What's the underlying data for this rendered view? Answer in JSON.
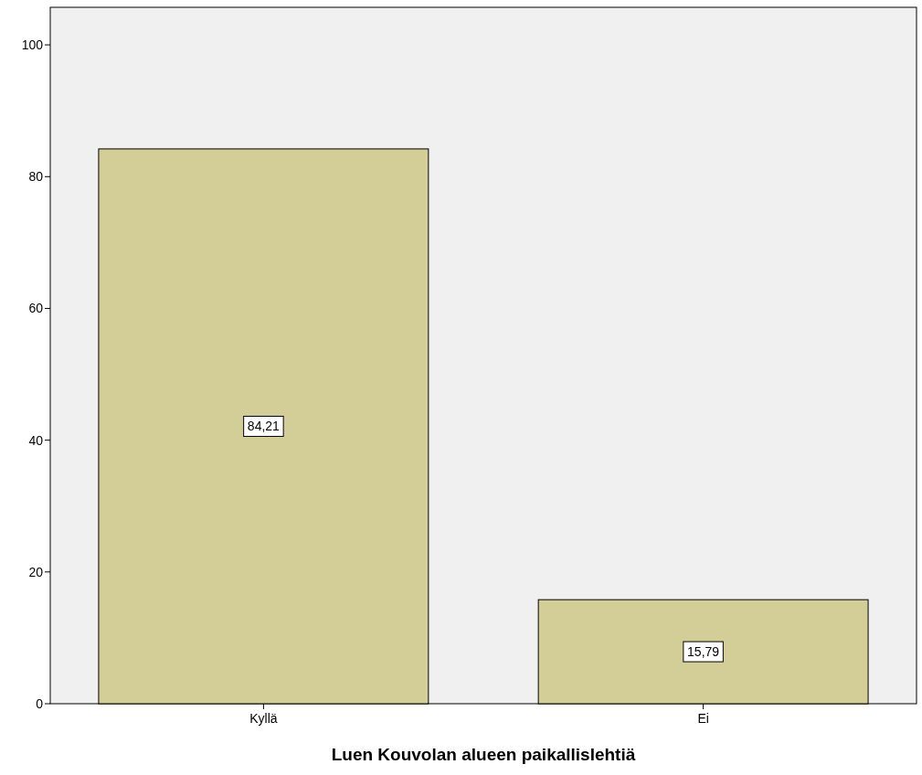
{
  "chart_data": {
    "type": "bar",
    "xlabel": "Luen Kouvolan alueen paikallislehtiä",
    "categories": [
      "Kyllä",
      "Ei"
    ],
    "values": [
      84.21,
      15.79
    ],
    "color": "#d3ce97",
    "value_labels": [
      "84,21",
      "15,79"
    ],
    "ylim": [
      0,
      105.7
    ],
    "yticks": [
      0,
      20,
      40,
      60,
      80,
      100
    ],
    "grid": false
  }
}
